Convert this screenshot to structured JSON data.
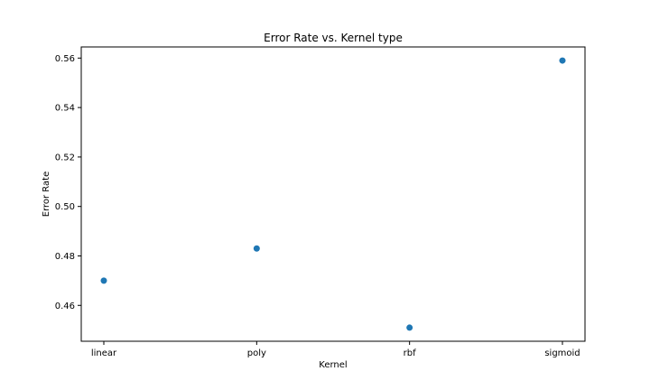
{
  "chart_data": {
    "type": "scatter",
    "title": "Error Rate vs. Kernel type",
    "xlabel": "Kernel",
    "ylabel": "Error Rate",
    "categories": [
      "linear",
      "poly",
      "rbf",
      "sigmoid"
    ],
    "values": [
      0.47,
      0.483,
      0.451,
      0.559
    ],
    "ylim": [
      0.4455,
      0.5645
    ],
    "yticks": [
      "0.46",
      "0.48",
      "0.50",
      "0.52",
      "0.54",
      "0.56"
    ],
    "grid": false,
    "color": "#1f77b4"
  }
}
